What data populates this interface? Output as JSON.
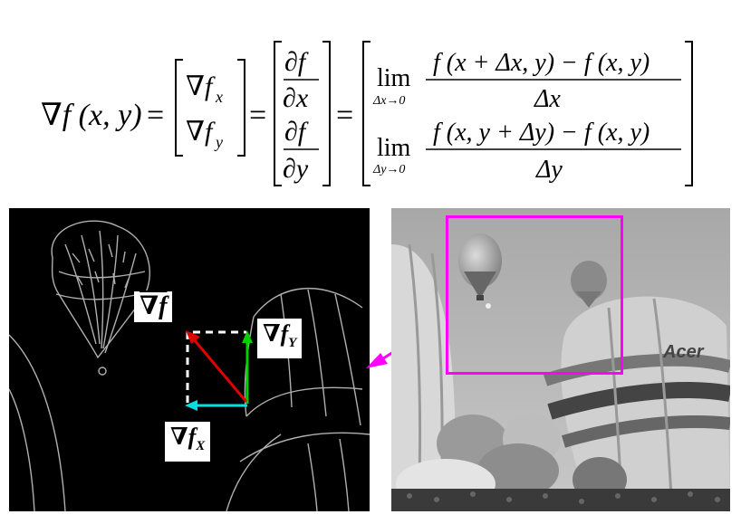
{
  "equation": {
    "lhs": "∇f (x, y)",
    "vector_top": "∇f",
    "vector_top_sub": "x",
    "vector_bottom": "∇f",
    "vector_bottom_sub": "y",
    "partial_num": "∂f",
    "partial_den_x": "∂x",
    "partial_den_y": "∂y",
    "lim": "lim",
    "lim_sub_x": "Δx→0",
    "lim_sub_y": "Δy→0",
    "num_x": "f (x + Δx, y) − f (x, y)",
    "den_x": "Δx",
    "num_y": "f (x, y + Δy) − f (x, y)",
    "den_y": "Δy",
    "eq": "="
  },
  "labels": {
    "grad_f": "∇f",
    "grad_fy": "∇f",
    "grad_fy_sub": "Y",
    "grad_fx": "∇f",
    "grad_fx_sub": "X"
  },
  "colors": {
    "gradient_arrow": "#e00000",
    "fy_arrow": "#00d000",
    "fx_arrow": "#00e0e0",
    "highlight_box": "#ff00ff",
    "pointer_arrow": "#ff00ff"
  }
}
